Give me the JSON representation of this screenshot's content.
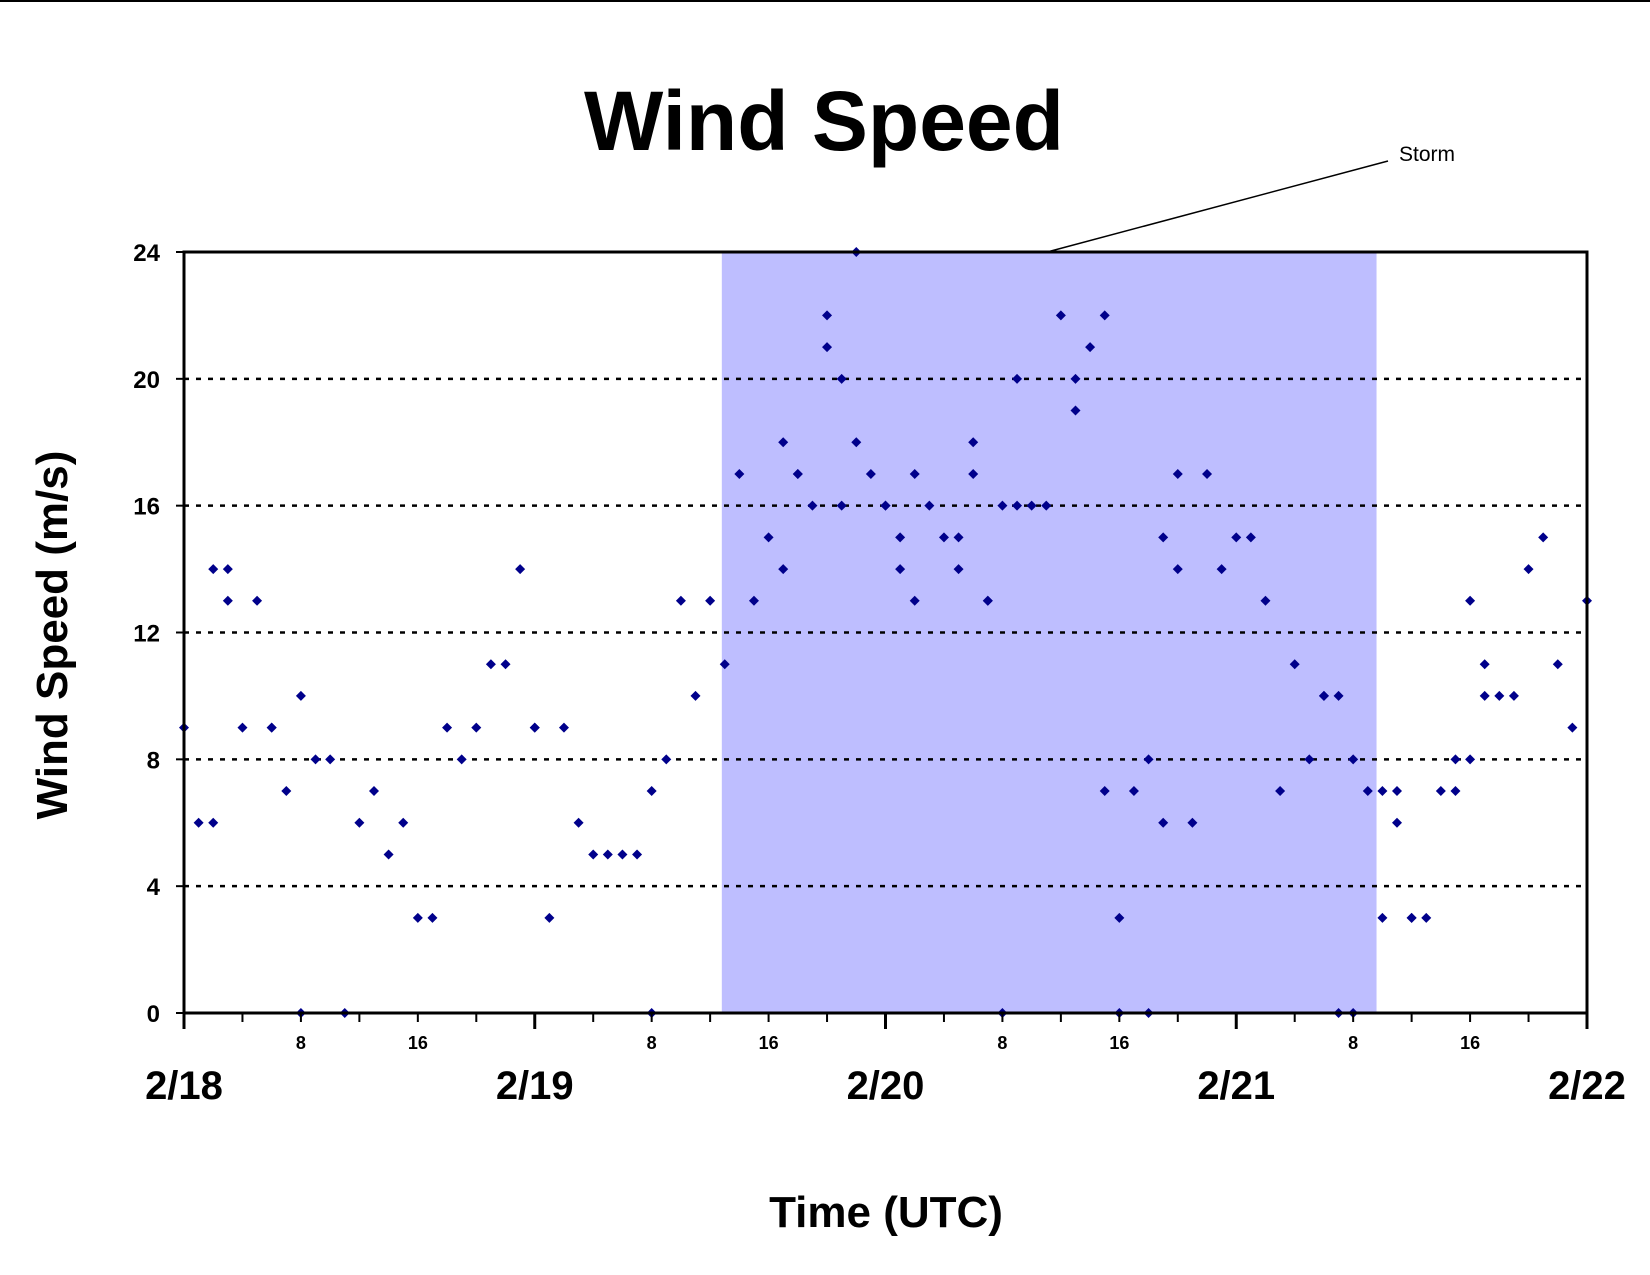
{
  "chart_data": {
    "type": "scatter",
    "title": "Wind Speed",
    "xlabel": "Time (UTC)",
    "ylabel": "Wind Speed (m/s)",
    "x_unit": "hours from 2/18 00 UTC",
    "xlim": [
      0,
      96
    ],
    "ylim": [
      0,
      24
    ],
    "y_ticks": [
      "0",
      "4",
      "8",
      "12",
      "16",
      "20",
      "24"
    ],
    "hour_ticks": [
      "8",
      "16"
    ],
    "day_labels": [
      "2/18",
      "2/19",
      "2/20",
      "2/21",
      "2/22"
    ],
    "grid": "dotted horizontal",
    "legend": "none",
    "colors": {
      "point": "#00008B",
      "storm_band": "#BEBEFF",
      "grid": "#000000"
    },
    "annotation": {
      "label": "Storm",
      "x_range": [
        36.8,
        81.6
      ]
    },
    "series": [
      {
        "points": [
          [
            0,
            9
          ],
          [
            1,
            6
          ],
          [
            2,
            6
          ],
          [
            2,
            14
          ],
          [
            3,
            13
          ],
          [
            3,
            14
          ],
          [
            4,
            9
          ],
          [
            5,
            13
          ],
          [
            6,
            9
          ],
          [
            6,
            9
          ],
          [
            7,
            7
          ],
          [
            8,
            10
          ],
          [
            8,
            0
          ],
          [
            9,
            8
          ],
          [
            10,
            8
          ],
          [
            11,
            0
          ],
          [
            12,
            6
          ],
          [
            13,
            7
          ],
          [
            14,
            5
          ],
          [
            15,
            6
          ],
          [
            16,
            3
          ],
          [
            17,
            3
          ],
          [
            18,
            9
          ],
          [
            19,
            8
          ],
          [
            20,
            9
          ],
          [
            21,
            11
          ],
          [
            22,
            11
          ],
          [
            23,
            14
          ],
          [
            24,
            9
          ],
          [
            24,
            9
          ],
          [
            25,
            3
          ],
          [
            26,
            9
          ],
          [
            27,
            6
          ],
          [
            28,
            5
          ],
          [
            29,
            5
          ],
          [
            30,
            5
          ],
          [
            31,
            5
          ],
          [
            32,
            7
          ],
          [
            32,
            0
          ],
          [
            33,
            8
          ],
          [
            34,
            13
          ],
          [
            35,
            10
          ],
          [
            36,
            13
          ],
          [
            37,
            11
          ],
          [
            38,
            17
          ],
          [
            39,
            13
          ],
          [
            40,
            15
          ],
          [
            41,
            14
          ],
          [
            41,
            18
          ],
          [
            42,
            17
          ],
          [
            42,
            17
          ],
          [
            43,
            16
          ],
          [
            44,
            22
          ],
          [
            44,
            21
          ],
          [
            45,
            20
          ],
          [
            45,
            16
          ],
          [
            46,
            18
          ],
          [
            46,
            24
          ],
          [
            47,
            17
          ],
          [
            48,
            16
          ],
          [
            48,
            16
          ],
          [
            49,
            14
          ],
          [
            49,
            15
          ],
          [
            50,
            13
          ],
          [
            50,
            17
          ],
          [
            51,
            16
          ],
          [
            52,
            15
          ],
          [
            53,
            15
          ],
          [
            53,
            14
          ],
          [
            54,
            17
          ],
          [
            54,
            18
          ],
          [
            55,
            13
          ],
          [
            55,
            13
          ],
          [
            56,
            16
          ],
          [
            57,
            16
          ],
          [
            56,
            0
          ],
          [
            57,
            20
          ],
          [
            58,
            16
          ],
          [
            59,
            16
          ],
          [
            60,
            22
          ],
          [
            61,
            20
          ],
          [
            61,
            19
          ],
          [
            62,
            21
          ],
          [
            63,
            22
          ],
          [
            63,
            7
          ],
          [
            64,
            3
          ],
          [
            64,
            0
          ],
          [
            65,
            7
          ],
          [
            66,
            8
          ],
          [
            66,
            0
          ],
          [
            67,
            6
          ],
          [
            67,
            15
          ],
          [
            68,
            17
          ],
          [
            68,
            14
          ],
          [
            69,
            6
          ],
          [
            70,
            17
          ],
          [
            71,
            14
          ],
          [
            72,
            15
          ],
          [
            73,
            15
          ],
          [
            74,
            13
          ],
          [
            75,
            7
          ],
          [
            76,
            11
          ],
          [
            77,
            8
          ],
          [
            78,
            10
          ],
          [
            78,
            10
          ],
          [
            79,
            10
          ],
          [
            79,
            0
          ],
          [
            80,
            8
          ],
          [
            80,
            0
          ],
          [
            81,
            7
          ],
          [
            82,
            7
          ],
          [
            82,
            3
          ],
          [
            83,
            6
          ],
          [
            83,
            7
          ],
          [
            84,
            3
          ],
          [
            84,
            3
          ],
          [
            85,
            3
          ],
          [
            86,
            7
          ],
          [
            87,
            7
          ],
          [
            87,
            8
          ],
          [
            88,
            13
          ],
          [
            88,
            8
          ],
          [
            89,
            10
          ],
          [
            89,
            11
          ],
          [
            90,
            10
          ],
          [
            91,
            10
          ],
          [
            92,
            14
          ],
          [
            93,
            15
          ],
          [
            94,
            11
          ],
          [
            95,
            9
          ],
          [
            96,
            13
          ]
        ]
      }
    ]
  }
}
